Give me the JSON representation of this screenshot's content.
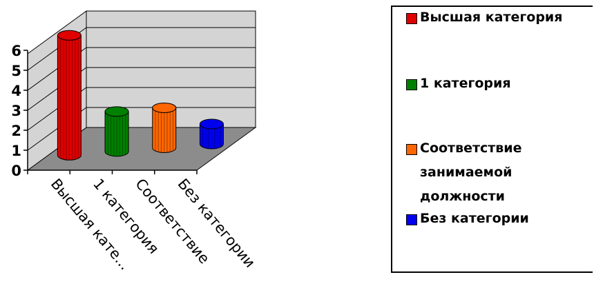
{
  "chart_data": {
    "type": "bar",
    "style": "3d-cylinder",
    "categories": [
      "Высшая кате...",
      "1 категория",
      "Соответствие",
      "Без категории"
    ],
    "values": [
      6,
      2,
      2,
      1
    ],
    "ylim": [
      0,
      6
    ],
    "y_ticks": [
      "0",
      "1",
      "2",
      "3",
      "4",
      "5",
      "6"
    ],
    "grid": true,
    "legend_position": "right",
    "colors": [
      "#e00000",
      "#008000",
      "#ff6600",
      "#0000ee"
    ]
  },
  "legend": {
    "items": [
      {
        "label": "Высшая категория",
        "color": "#e00000"
      },
      {
        "label": "1 категория",
        "color": "#008000"
      },
      {
        "label": "Соответствие занимаемой должности",
        "color": "#ff6600"
      },
      {
        "label": "Без категории",
        "color": "#0000ee"
      }
    ]
  }
}
